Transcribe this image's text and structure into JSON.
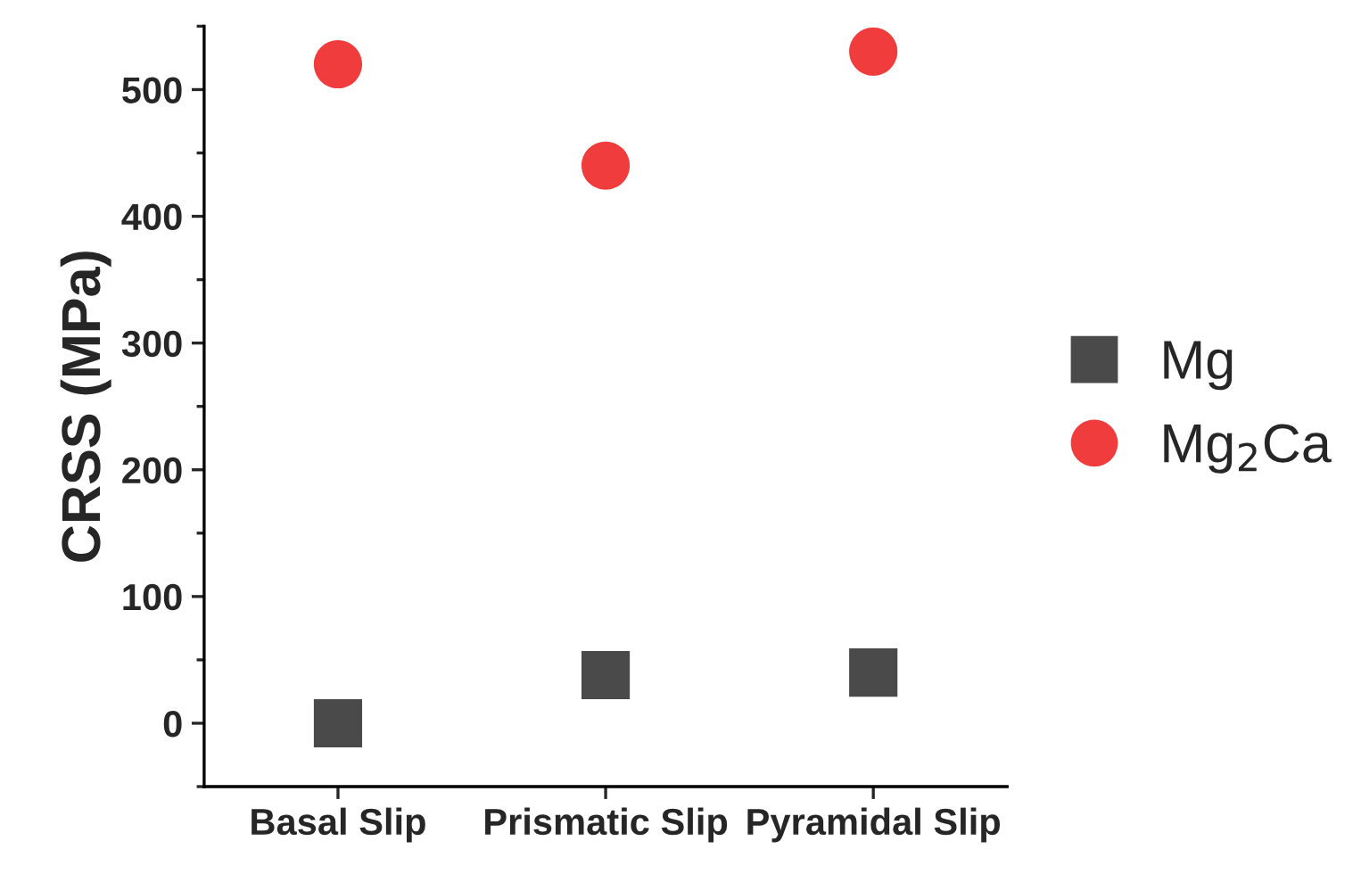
{
  "chart_data": {
    "type": "scatter",
    "ylabel": "CRSS (MPa)",
    "categories": [
      "Basal Slip",
      "Prismatic Slip",
      "Pyramidal Slip"
    ],
    "series": [
      {
        "name": "Mg",
        "color": "#4a4a4a",
        "marker": "square",
        "values": [
          0,
          38,
          40
        ]
      },
      {
        "name": "Mg$_{2}$Ca",
        "color": "#f03c3c",
        "marker": "circle",
        "values": [
          520,
          440,
          530
        ]
      }
    ],
    "ylim": [
      -50,
      550
    ],
    "yticks": [
      0,
      100,
      200,
      300,
      400,
      500
    ],
    "grid": false,
    "legend": "right"
  }
}
